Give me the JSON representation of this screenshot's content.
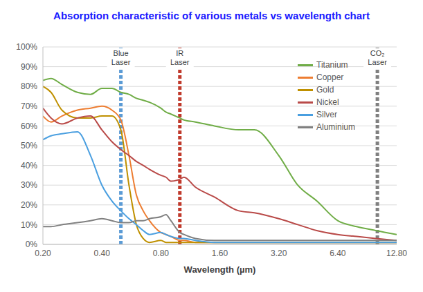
{
  "chart_data": {
    "type": "line",
    "title": "Absorption characteristic of various metals vs wavelength chart",
    "x_label": "Wavelength (µm)",
    "log": "x",
    "grid": true,
    "legend": "upper right",
    "xlim": [
      0.2,
      12.8
    ],
    "xticks": [
      {
        "value": 0.2,
        "label": "0.20"
      },
      {
        "value": 0.4,
        "label": "0.40"
      },
      {
        "value": 0.8,
        "label": "0.80"
      },
      {
        "value": 1.6,
        "label": "1.60"
      },
      {
        "value": 3.2,
        "label": "3.20"
      },
      {
        "value": 6.4,
        "label": "6.40"
      },
      {
        "value": 12.8,
        "label": "12.80"
      }
    ],
    "ylim": [
      0,
      100
    ],
    "yticks": [
      {
        "value": 0,
        "label": "0%"
      },
      {
        "value": 10,
        "label": "10%"
      },
      {
        "value": 20,
        "label": "20%"
      },
      {
        "value": 30,
        "label": "30%"
      },
      {
        "value": 40,
        "label": "40%"
      },
      {
        "value": 50,
        "label": "50%"
      },
      {
        "value": 60,
        "label": "60%"
      },
      {
        "value": 70,
        "label": "70%"
      },
      {
        "value": 80,
        "label": "80%"
      },
      {
        "value": 90,
        "label": "90%"
      },
      {
        "value": 100,
        "label": "100%"
      }
    ],
    "x": [
      0.2,
      0.22,
      0.25,
      0.3,
      0.35,
      0.4,
      0.45,
      0.5,
      0.55,
      0.6,
      0.65,
      0.7,
      0.8,
      0.85,
      0.9,
      1.0,
      1.05,
      1.2,
      1.5,
      2.0,
      2.4,
      3.2,
      4.0,
      5.0,
      6.4,
      8.0,
      10.0,
      12.8
    ],
    "series": [
      {
        "name": "Titanium",
        "color": "#70ad47",
        "values": [
          83,
          84,
          81,
          77,
          76,
          79,
          79,
          77,
          76,
          74,
          73,
          72,
          69,
          67,
          66,
          64,
          63,
          62,
          60,
          58,
          58,
          45,
          30,
          22,
          12,
          9,
          7,
          5
        ]
      },
      {
        "name": "Copper",
        "color": "#ed7d31",
        "values": [
          65,
          62,
          65,
          68,
          69,
          70,
          68,
          63,
          45,
          25,
          17,
          12,
          6,
          5,
          4,
          2,
          2,
          1,
          1,
          1,
          1,
          1,
          1,
          1,
          1,
          1,
          1,
          1
        ]
      },
      {
        "name": "Gold",
        "color": "#bf9000",
        "values": [
          80,
          77,
          68,
          64,
          64,
          65,
          65,
          58,
          30,
          10,
          3,
          1,
          2,
          1,
          1,
          1,
          1,
          1,
          1,
          1,
          1,
          1,
          1,
          1,
          1,
          1,
          1,
          1
        ]
      },
      {
        "name": "Nickel",
        "color": "#b94a48",
        "values": [
          69,
          64,
          61,
          64,
          65,
          58,
          52,
          48,
          45,
          42,
          40,
          38,
          35,
          34,
          32,
          33,
          34,
          29,
          24,
          17,
          16,
          13,
          10,
          7,
          5,
          4,
          3,
          2
        ]
      },
      {
        "name": "Silver",
        "color": "#4a9fe0",
        "values": [
          53,
          55,
          56,
          57,
          45,
          30,
          22,
          17,
          13,
          10,
          7,
          5,
          6,
          5,
          4,
          3,
          3,
          2,
          1,
          1,
          1,
          1,
          1,
          1,
          1,
          1,
          1,
          1
        ]
      },
      {
        "name": "Aluminium",
        "color": "#808080",
        "values": [
          9,
          9,
          10,
          11,
          12,
          13,
          12,
          11,
          11,
          12,
          12,
          13,
          14,
          15,
          12,
          6,
          5,
          3,
          2,
          2,
          2,
          2,
          2,
          2,
          2,
          2,
          2,
          2
        ]
      }
    ],
    "annotations": [
      {
        "text": "Blue Laser",
        "x": 0.5,
        "color": "#5b9bd5"
      },
      {
        "text": "IR Laser",
        "x": 1.0,
        "color": "#c0392b"
      },
      {
        "text": "CO₂ Laser",
        "x": 10.2,
        "color": "#808080"
      }
    ]
  }
}
